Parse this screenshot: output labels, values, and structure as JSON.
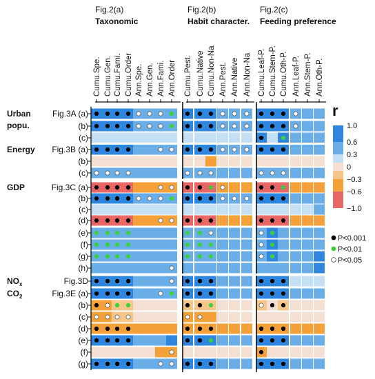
{
  "chart_data": {
    "type": "heatmap",
    "groups": [
      {
        "fig": "Fig.2(a)",
        "title": "Taxonomic"
      },
      {
        "fig": "Fig.2(b)",
        "title": "Habit character."
      },
      {
        "fig": "Fig.2(c)",
        "title": "Feeding preference"
      }
    ],
    "columns": [
      "Cumu.Spe.",
      "Cumu.Gen.",
      "Cumu.Fami.",
      "Cumu.Order",
      "Ann.Spe.",
      "Ann.Gen.",
      "Ann.Fami.",
      "Ann.Order",
      "Cumu.Pest.",
      "Cumu.Native",
      "Cumu.Non-Na",
      "Ann.Pest.",
      "Ann.Native",
      "Ann.Non-Na",
      "Cumu.Leaf-P.",
      "Cumu.Stem-P.",
      "Cumu.Oth-P.",
      "Ann.Leaf-P.",
      "Ann.Stem-P.",
      "Ann.Oth-P."
    ],
    "row_groups": [
      {
        "name": "Urban popu.",
        "name_lines": [
          "Urban",
          "popu."
        ],
        "fig": "Fig.3A",
        "labels": [
          "(a)",
          "(b)",
          "(c)"
        ]
      },
      {
        "name": "Energy",
        "name_lines": [
          "Energy"
        ],
        "fig": "Fig.3B",
        "labels": [
          "(a)",
          "(b)",
          "(c)"
        ]
      },
      {
        "name": "GDP",
        "name_lines": [
          "GDP"
        ],
        "fig": "Fig.3C",
        "labels": [
          "(a)",
          "(b)",
          "(c)",
          "(d)",
          "(e)",
          "(f)",
          "(g)",
          "(h)"
        ]
      },
      {
        "name": "NOx",
        "name_lines": [
          "NOx"
        ],
        "fig": "Fig.3D",
        "labels": [
          ""
        ]
      },
      {
        "name": "CO2",
        "name_lines": [
          "CO2"
        ],
        "fig": "Fig.3E",
        "labels": [
          "(a)",
          "(b)",
          "(c)",
          "(d)",
          "(e)",
          "(f)",
          "(g)"
        ]
      }
    ],
    "values": [
      [
        0.8,
        0.8,
        0.8,
        0.8,
        0.5,
        0.5,
        0.5,
        0.5,
        0.8,
        0.8,
        0.8,
        0.5,
        0.5,
        0.5,
        0.8,
        0.8,
        0.8,
        0.5,
        0.3,
        0.3
      ],
      [
        0.8,
        0.8,
        0.8,
        0.8,
        0.5,
        0.5,
        0.5,
        0.5,
        0.8,
        0.8,
        0.8,
        0.5,
        0.5,
        0.5,
        0.8,
        0.8,
        0.8,
        0.5,
        0.3,
        0.3
      ],
      [
        0.1,
        0.1,
        0.1,
        0.1,
        0.1,
        0.1,
        0.1,
        0.1,
        0.1,
        0.1,
        0.1,
        0.1,
        0.1,
        0.1,
        0.8,
        0.1,
        0.8,
        0.5,
        0.3,
        0.3
      ],
      [
        0.8,
        0.8,
        0.8,
        0.8,
        0.5,
        0.5,
        0.5,
        0.5,
        0.8,
        0.8,
        0.8,
        0.5,
        0.5,
        0.5,
        0.8,
        0.8,
        0.8,
        0.5,
        0.3,
        0.3
      ],
      [
        -0.05,
        -0.05,
        -0.05,
        -0.05,
        -0.05,
        -0.05,
        -0.05,
        -0.05,
        -0.05,
        -0.05,
        -0.45,
        -0.05,
        -0.05,
        -0.05,
        -0.05,
        -0.05,
        -0.05,
        -0.05,
        -0.05,
        -0.05
      ],
      [
        0.5,
        0.5,
        0.5,
        0.5,
        0.3,
        0.3,
        0.3,
        0.3,
        0.5,
        0.5,
        0.5,
        0.3,
        0.3,
        0.3,
        0.5,
        0.5,
        0.5,
        0.3,
        0.3,
        0.3
      ],
      [
        -0.8,
        -0.8,
        -0.8,
        -0.8,
        -0.5,
        -0.5,
        -0.5,
        -0.5,
        -0.8,
        -0.8,
        -0.8,
        -0.5,
        -0.5,
        -0.5,
        -0.8,
        -0.8,
        -0.8,
        -0.5,
        -0.5,
        -0.5
      ],
      [
        0.8,
        0.8,
        0.8,
        0.8,
        0.5,
        0.5,
        0.5,
        0.5,
        0.8,
        0.8,
        0.8,
        0.5,
        0.5,
        0.5,
        0.8,
        0.8,
        0.8,
        0.3,
        0.3,
        0.5
      ],
      [
        0.1,
        0.1,
        0.1,
        0.1,
        0.2,
        0.2,
        0.2,
        0.2,
        0.1,
        0.1,
        0.1,
        0.2,
        0.2,
        0.2,
        0.1,
        0.1,
        0.1,
        0.2,
        0.2,
        0.5
      ],
      [
        -0.8,
        -0.8,
        -0.8,
        -0.8,
        -0.5,
        -0.5,
        -0.5,
        -0.5,
        -0.8,
        -0.8,
        -0.8,
        -0.5,
        -0.5,
        -0.5,
        -0.8,
        -0.8,
        -0.8,
        -0.5,
        -0.5,
        -0.5
      ],
      [
        0.5,
        0.5,
        0.5,
        0.5,
        0.3,
        0.3,
        0.3,
        0.5,
        0.5,
        0.5,
        0.5,
        0.3,
        0.3,
        0.3,
        0.3,
        0.8,
        0.5,
        0.3,
        0.3,
        0.5
      ],
      [
        0.5,
        0.5,
        0.5,
        0.5,
        0.3,
        0.3,
        0.3,
        0.5,
        0.5,
        0.5,
        0.5,
        0.3,
        0.3,
        0.3,
        0.3,
        0.8,
        0.5,
        0.3,
        0.3,
        0.5
      ],
      [
        0.5,
        0.5,
        0.5,
        0.5,
        0.3,
        0.3,
        0.3,
        0.5,
        0.5,
        0.5,
        0.5,
        0.3,
        0.3,
        0.3,
        0.3,
        0.8,
        0.5,
        0.3,
        0.3,
        0.9
      ],
      [
        0.3,
        0.3,
        0.5,
        0.5,
        0.3,
        0.3,
        0.3,
        0.5,
        0.3,
        0.3,
        0.5,
        0.3,
        0.3,
        0.3,
        0.3,
        0.5,
        0.5,
        0.3,
        0.3,
        0.9
      ],
      [
        0.8,
        0.8,
        0.8,
        0.8,
        0.5,
        0.5,
        0.5,
        0.5,
        0.8,
        0.8,
        0.8,
        0.5,
        0.5,
        0.5,
        0.8,
        0.8,
        0.8,
        0.1,
        0.1,
        0.1
      ],
      [
        0.8,
        0.8,
        0.8,
        0.8,
        0.5,
        0.5,
        0.5,
        0.5,
        0.8,
        0.8,
        0.8,
        0.5,
        0.5,
        0.5,
        0.8,
        0.8,
        0.8,
        0.3,
        0.3,
        0.3
      ],
      [
        -0.6,
        -0.6,
        -0.3,
        -0.3,
        -0.1,
        -0.1,
        -0.1,
        -0.1,
        -0.3,
        -0.3,
        -0.3,
        -0.1,
        -0.1,
        -0.1,
        -0.3,
        -0.1,
        -0.3,
        -0.1,
        -0.1,
        -0.1
      ],
      [
        -0.6,
        -0.4,
        -0.3,
        -0.3,
        -0.1,
        -0.1,
        -0.1,
        -0.1,
        -0.4,
        -0.4,
        -0.4,
        -0.1,
        -0.1,
        -0.1,
        -0.1,
        -0.1,
        -0.1,
        -0.1,
        -0.1,
        -0.1
      ],
      [
        -0.5,
        -0.5,
        -0.5,
        -0.5,
        -0.5,
        -0.5,
        -0.5,
        -0.5,
        -0.5,
        -0.5,
        -0.5,
        -0.5,
        -0.5,
        -0.5,
        -0.5,
        -0.5,
        -0.5,
        -0.5,
        -0.5,
        -0.5
      ],
      [
        0.8,
        0.8,
        0.8,
        0.8,
        0.5,
        0.5,
        0.5,
        0.8,
        0.8,
        0.8,
        0.8,
        0.5,
        0.5,
        0.5,
        0.8,
        0.8,
        0.8,
        0.3,
        0.3,
        0.3
      ],
      [
        -0.1,
        -0.1,
        -0.1,
        -0.1,
        -0.1,
        -0.1,
        -0.5,
        -0.5,
        -0.1,
        -0.1,
        -0.1,
        -0.1,
        -0.1,
        -0.1,
        -0.6,
        -0.1,
        -0.1,
        -0.1,
        -0.1,
        -0.1
      ],
      [
        0.8,
        0.8,
        0.8,
        0.8,
        0.5,
        0.5,
        0.5,
        0.5,
        0.8,
        0.8,
        0.8,
        0.5,
        0.5,
        0.5,
        0.8,
        0.8,
        0.8,
        0.3,
        0.3,
        0.3
      ]
    ],
    "significance_marks": [
      [
        3,
        3,
        3,
        3,
        1,
        1,
        1,
        2,
        3,
        3,
        3,
        1,
        1,
        1,
        3,
        3,
        3,
        1,
        0,
        0
      ],
      [
        3,
        3,
        3,
        3,
        1,
        1,
        1,
        2,
        3,
        3,
        3,
        1,
        1,
        1,
        3,
        3,
        3,
        1,
        0,
        0
      ],
      [
        0,
        0,
        0,
        0,
        0,
        0,
        0,
        0,
        0,
        0,
        0,
        0,
        0,
        0,
        3,
        0,
        2,
        0,
        0,
        0
      ],
      [
        3,
        3,
        3,
        3,
        0,
        0,
        1,
        1,
        3,
        3,
        3,
        1,
        1,
        1,
        3,
        3,
        3,
        0,
        0,
        0
      ],
      [
        0,
        0,
        0,
        0,
        0,
        0,
        0,
        0,
        0,
        0,
        0,
        0,
        0,
        0,
        0,
        0,
        0,
        0,
        0,
        0
      ],
      [
        1,
        1,
        1,
        1,
        0,
        0,
        0,
        0,
        1,
        1,
        1,
        0,
        0,
        0,
        1,
        1,
        1,
        0,
        0,
        0
      ],
      [
        3,
        3,
        3,
        3,
        0,
        0,
        1,
        1,
        3,
        3,
        2,
        1,
        0,
        0,
        3,
        3,
        2,
        0,
        0,
        0
      ],
      [
        3,
        3,
        3,
        3,
        1,
        1,
        1,
        2,
        3,
        3,
        3,
        1,
        1,
        1,
        3,
        3,
        3,
        0,
        0,
        0
      ],
      [
        0,
        0,
        0,
        0,
        0,
        0,
        0,
        0,
        0,
        0,
        0,
        0,
        0,
        0,
        0,
        0,
        0,
        0,
        0,
        0
      ],
      [
        3,
        3,
        3,
        3,
        0,
        0,
        1,
        1,
        3,
        3,
        3,
        0,
        0,
        0,
        3,
        3,
        3,
        0,
        0,
        0
      ],
      [
        2,
        2,
        2,
        2,
        0,
        0,
        0,
        0,
        2,
        2,
        1,
        0,
        0,
        0,
        1,
        2,
        0,
        0,
        0,
        0
      ],
      [
        2,
        2,
        2,
        2,
        0,
        0,
        0,
        0,
        2,
        2,
        2,
        0,
        0,
        0,
        1,
        2,
        0,
        0,
        0,
        0
      ],
      [
        2,
        2,
        2,
        2,
        0,
        0,
        0,
        0,
        2,
        2,
        2,
        0,
        0,
        0,
        1,
        2,
        0,
        0,
        0,
        0
      ],
      [
        0,
        0,
        0,
        0,
        0,
        0,
        0,
        1,
        0,
        0,
        0,
        0,
        0,
        0,
        0,
        0,
        0,
        0,
        0,
        0
      ],
      [
        3,
        3,
        3,
        3,
        0,
        0,
        0,
        1,
        3,
        3,
        3,
        0,
        0,
        0,
        3,
        3,
        3,
        0,
        0,
        0
      ],
      [
        3,
        3,
        3,
        3,
        0,
        0,
        1,
        2,
        3,
        3,
        3,
        0,
        0,
        0,
        3,
        3,
        3,
        0,
        0,
        0
      ],
      [
        3,
        1,
        2,
        2,
        0,
        0,
        0,
        0,
        3,
        3,
        2,
        0,
        0,
        0,
        1,
        3,
        3,
        0,
        0,
        0
      ],
      [
        1,
        1,
        1,
        1,
        0,
        0,
        0,
        0,
        1,
        1,
        0,
        0,
        0,
        0,
        0,
        0,
        0,
        0,
        0,
        0
      ],
      [
        3,
        3,
        3,
        3,
        0,
        0,
        0,
        0,
        3,
        3,
        3,
        0,
        0,
        0,
        3,
        3,
        3,
        0,
        0,
        0
      ],
      [
        3,
        3,
        3,
        3,
        0,
        0,
        0,
        0,
        3,
        3,
        2,
        0,
        0,
        0,
        3,
        3,
        3,
        0,
        0,
        0
      ],
      [
        0,
        0,
        0,
        0,
        0,
        0,
        0,
        1,
        0,
        0,
        0,
        0,
        0,
        0,
        3,
        0,
        0,
        0,
        0,
        0
      ],
      [
        3,
        3,
        3,
        3,
        0,
        0,
        1,
        1,
        3,
        3,
        3,
        0,
        0,
        0,
        3,
        3,
        3,
        0,
        0,
        0
      ]
    ],
    "significance_legend": [
      {
        "code": 3,
        "label": "P<0.001",
        "color": "#000000"
      },
      {
        "code": 2,
        "label": "P<0.01",
        "color": "#3ad13a"
      },
      {
        "code": 1,
        "label": "P<0.05",
        "color": "#ffffff"
      }
    ],
    "colorbar": {
      "title": "r",
      "ticks": [
        "1.0",
        "0.6",
        "0.3",
        "0",
        "−0.3",
        "−0.6",
        "−1.0"
      ],
      "bands": [
        {
          "from": 0.6,
          "to": 1.0,
          "color": "#2e86de"
        },
        {
          "from": 0.3,
          "to": 0.6,
          "color": "#6aaee8"
        },
        {
          "from": 0.1,
          "to": 0.3,
          "color": "#c4dff4"
        },
        {
          "from": -0.1,
          "to": 0.1,
          "color": "#f3e0d3"
        },
        {
          "from": -0.3,
          "to": -0.1,
          "color": "#f5c58a"
        },
        {
          "from": -0.6,
          "to": -0.3,
          "color": "#f4a13a"
        },
        {
          "from": -1.0,
          "to": -0.6,
          "color": "#e86868"
        }
      ]
    }
  }
}
